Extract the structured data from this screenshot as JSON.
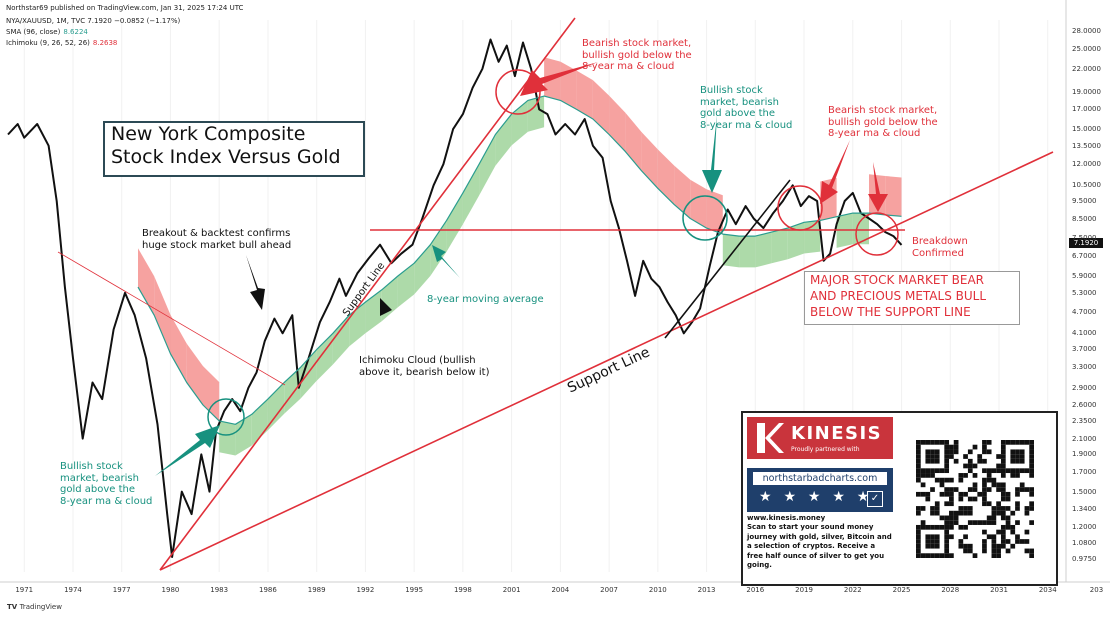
{
  "header": {
    "publisher": "Northstar69 published on TradingView.com, Jan 31, 2025 17:24 UTC",
    "symbol_line": "NYA/XAUUSD, 1M, TVC  7.1920  −0.0852 (−1.17%)",
    "sma_label": "SMA (96, close)",
    "sma_value": "8.6224",
    "ichimoku_label": "Ichimoku (9, 26, 52, 26)",
    "ichimoku_value": "8.2638"
  },
  "title_lines": [
    "New York Composite",
    "Stock Index Versus Gold"
  ],
  "annotations": {
    "bearish_top_1": "Bearish stock market,",
    "bearish_top_2": "bullish gold below the",
    "bearish_top_3": "8-year ma & cloud",
    "bullish_mid_1": "Bullish stock",
    "bullish_mid_2": "market, bearish",
    "bullish_mid_3": "gold above the",
    "bullish_mid_4": "8-year ma & cloud",
    "bearish_right_1": "Bearish stock market,",
    "bearish_right_2": "bullish gold below the",
    "bearish_right_3": "8-year ma & cloud",
    "breakout_1": "Breakout & backtest confirms",
    "breakout_2": "huge stock market bull ahead",
    "ma_label": "8-year moving average",
    "cloud_1": "Ichimoku Cloud (bullish",
    "cloud_2": "above it, bearish below it)",
    "support_line_1": "Support Line",
    "support_line_2": "Support Line",
    "bullish_left_1": "Bullish stock",
    "bullish_left_2": "market, bearish",
    "bullish_left_3": "gold above the",
    "bullish_left_4": "8-year ma & cloud",
    "breakdown_1": "Breakdown",
    "breakdown_2": "Confirmed"
  },
  "bear_box_lines": [
    "MAJOR STOCK MARKET BEAR",
    "AND PRECIOUS METALS BULL",
    "BELOW THE SUPPORT LINE"
  ],
  "ad": {
    "brand": "KINESIS",
    "partner": "Proudly partnered with",
    "site_badge": "northstarbadcharts.com",
    "stars": "★ ★ ★ ★ ★",
    "text_lines": [
      "www.kinesis.money",
      "Scan to start your sound money",
      "journey with gold, silver, Bitcoin and",
      "a selection of cryptos. Receive a",
      "free half ounce of silver to get you",
      "going."
    ]
  },
  "current_price_tag": "7.1920",
  "footer": "TradingView",
  "colors": {
    "price": "#111111",
    "ma": "#2a9d8f",
    "cloud_bull": "#9fd49a",
    "cloud_bear": "#f4928f",
    "bear_text": "#e0303a",
    "bull_text": "#17917f"
  },
  "chart_data": {
    "type": "line",
    "scale": "log",
    "ylim": [
      0.9,
      30
    ],
    "xlim": [
      1970,
      2035
    ],
    "y_ticks": [
      "28.0000",
      "25.0000",
      "22.0000",
      "19.0000",
      "17.0000",
      "15.0000",
      "13.5000",
      "12.0000",
      "10.5000",
      "9.5000",
      "8.5000",
      "7.5000",
      "6.7000",
      "5.9000",
      "5.3000",
      "4.7000",
      "4.1000",
      "3.7000",
      "3.3000",
      "2.9000",
      "2.6000",
      "2.3500",
      "2.1000",
      "1.9000",
      "1.7000",
      "1.5000",
      "1.3400",
      "1.2000",
      "1.0800",
      "0.9750"
    ],
    "x_ticks": [
      "1971",
      "1974",
      "1977",
      "1980",
      "1983",
      "1986",
      "1989",
      "1992",
      "1995",
      "1998",
      "2001",
      "2004",
      "2007",
      "2010",
      "2013",
      "2016",
      "2019",
      "2022",
      "2025",
      "2028",
      "2031",
      "2034",
      "203"
    ],
    "series": [
      {
        "name": "NYA/XAUUSD",
        "points": [
          [
            1970.0,
            14.5
          ],
          [
            1970.6,
            15.5
          ],
          [
            1971.0,
            14.2
          ],
          [
            1971.8,
            15.5
          ],
          [
            1972.5,
            13.5
          ],
          [
            1973.0,
            9.5
          ],
          [
            1973.5,
            5.5
          ],
          [
            1974.0,
            3.5
          ],
          [
            1974.6,
            2.1
          ],
          [
            1975.2,
            3.0
          ],
          [
            1975.8,
            2.7
          ],
          [
            1976.5,
            4.2
          ],
          [
            1977.2,
            5.3
          ],
          [
            1977.8,
            4.6
          ],
          [
            1978.5,
            3.5
          ],
          [
            1979.2,
            2.3
          ],
          [
            1979.8,
            1.3
          ],
          [
            1980.1,
            0.99
          ],
          [
            1980.7,
            1.5
          ],
          [
            1981.3,
            1.3
          ],
          [
            1981.9,
            1.9
          ],
          [
            1982.4,
            1.5
          ],
          [
            1982.8,
            2.2
          ],
          [
            1983.3,
            2.5
          ],
          [
            1983.8,
            2.7
          ],
          [
            1984.3,
            2.5
          ],
          [
            1984.8,
            2.9
          ],
          [
            1985.3,
            3.2
          ],
          [
            1985.8,
            3.9
          ],
          [
            1986.4,
            4.5
          ],
          [
            1986.9,
            4.1
          ],
          [
            1987.5,
            4.6
          ],
          [
            1987.9,
            2.9
          ],
          [
            1988.5,
            3.5
          ],
          [
            1989.2,
            4.4
          ],
          [
            1989.8,
            5.0
          ],
          [
            1990.4,
            5.8
          ],
          [
            1990.8,
            5.2
          ],
          [
            1991.5,
            6.0
          ],
          [
            1992.2,
            6.6
          ],
          [
            1992.9,
            7.2
          ],
          [
            1993.6,
            6.4
          ],
          [
            1994.2,
            6.8
          ],
          [
            1994.9,
            7.2
          ],
          [
            1995.5,
            8.5
          ],
          [
            1996.2,
            10.5
          ],
          [
            1996.8,
            12.0
          ],
          [
            1997.4,
            15.0
          ],
          [
            1998.0,
            16.5
          ],
          [
            1998.6,
            19.5
          ],
          [
            1999.2,
            22.0
          ],
          [
            1999.7,
            26.5
          ],
          [
            2000.2,
            23.0
          ],
          [
            2000.7,
            25.5
          ],
          [
            2001.2,
            21.0
          ],
          [
            2001.7,
            26.0
          ],
          [
            2002.2,
            22.0
          ],
          [
            2002.7,
            17.0
          ],
          [
            2003.2,
            16.5
          ],
          [
            2003.7,
            14.5
          ],
          [
            2004.3,
            15.5
          ],
          [
            2004.9,
            14.5
          ],
          [
            2005.5,
            16.0
          ],
          [
            2006.0,
            13.5
          ],
          [
            2006.6,
            12.5
          ],
          [
            2007.1,
            9.5
          ],
          [
            2007.6,
            8.0
          ],
          [
            2008.1,
            6.5
          ],
          [
            2008.6,
            5.2
          ],
          [
            2009.1,
            6.5
          ],
          [
            2009.6,
            5.8
          ],
          [
            2010.1,
            5.5
          ],
          [
            2010.6,
            5.0
          ],
          [
            2011.1,
            4.6
          ],
          [
            2011.6,
            4.1
          ],
          [
            2012.1,
            4.4
          ],
          [
            2012.6,
            4.8
          ],
          [
            2013.2,
            6.3
          ],
          [
            2013.7,
            7.8
          ],
          [
            2014.3,
            9.0
          ],
          [
            2014.8,
            8.2
          ],
          [
            2015.4,
            9.2
          ],
          [
            2015.9,
            8.5
          ],
          [
            2016.5,
            8.0
          ],
          [
            2017.1,
            8.8
          ],
          [
            2017.7,
            9.5
          ],
          [
            2018.3,
            10.5
          ],
          [
            2018.8,
            9.2
          ],
          [
            2019.3,
            9.8
          ],
          [
            2019.8,
            9.5
          ],
          [
            2020.2,
            6.5
          ],
          [
            2020.6,
            6.8
          ],
          [
            2021.0,
            8.2
          ],
          [
            2021.5,
            9.5
          ],
          [
            2022.0,
            10.0
          ],
          [
            2022.5,
            8.8
          ],
          [
            2023.0,
            8.5
          ],
          [
            2023.5,
            8.2
          ],
          [
            2024.0,
            7.8
          ],
          [
            2024.5,
            7.6
          ],
          [
            2025.0,
            7.19
          ]
        ]
      },
      {
        "name": "SMA (96, close)",
        "points": [
          [
            1978.0,
            5.5
          ],
          [
            1979.0,
            4.6
          ],
          [
            1980.0,
            3.6
          ],
          [
            1981.0,
            3.0
          ],
          [
            1982.0,
            2.6
          ],
          [
            1983.0,
            2.35
          ],
          [
            1984.0,
            2.3
          ],
          [
            1985.0,
            2.45
          ],
          [
            1986.0,
            2.7
          ],
          [
            1987.0,
            3.0
          ],
          [
            1988.0,
            3.3
          ],
          [
            1989.0,
            3.7
          ],
          [
            1990.0,
            4.1
          ],
          [
            1991.0,
            4.6
          ],
          [
            1992.0,
            5.0
          ],
          [
            1993.0,
            5.4
          ],
          [
            1994.0,
            5.9
          ],
          [
            1995.0,
            6.4
          ],
          [
            1996.0,
            7.2
          ],
          [
            1997.0,
            8.4
          ],
          [
            1998.0,
            10.0
          ],
          [
            1999.0,
            12.0
          ],
          [
            2000.0,
            14.5
          ],
          [
            2001.0,
            16.5
          ],
          [
            2002.0,
            18.0
          ],
          [
            2003.0,
            18.5
          ],
          [
            2004.0,
            18.0
          ],
          [
            2005.0,
            17.0
          ],
          [
            2006.0,
            16.0
          ],
          [
            2007.0,
            14.5
          ],
          [
            2008.0,
            13.0
          ],
          [
            2009.0,
            11.5
          ],
          [
            2010.0,
            10.3
          ],
          [
            2011.0,
            9.3
          ],
          [
            2012.0,
            8.5
          ],
          [
            2013.0,
            8.0
          ],
          [
            2014.0,
            7.7
          ],
          [
            2015.0,
            7.6
          ],
          [
            2016.0,
            7.6
          ],
          [
            2017.0,
            7.8
          ],
          [
            2018.0,
            8.0
          ],
          [
            2019.0,
            8.3
          ],
          [
            2020.0,
            8.4
          ],
          [
            2021.0,
            8.6
          ],
          [
            2022.0,
            8.8
          ],
          [
            2023.0,
            8.8
          ],
          [
            2024.0,
            8.7
          ],
          [
            2025.0,
            8.62
          ]
        ]
      }
    ]
  }
}
